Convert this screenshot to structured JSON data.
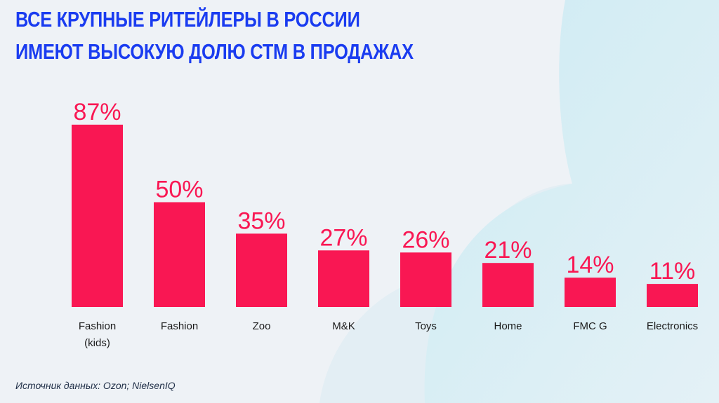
{
  "title_lines": [
    "ВСЕ КРУПНЫЕ РИТЕЙЛЕРЫ В РОССИИ",
    "ИМЕЮТ ВЫСОКУЮ ДОЛЮ СТМ В ПРОДАЖАХ"
  ],
  "source": "Источник данных: Ozon; NielsenIQ",
  "colors": {
    "bar": "#f91753",
    "title": "#1a3cf0",
    "value_label": "#f91753",
    "background": "#eef2f6",
    "cloud": "#cfeaf2"
  },
  "chart_data": {
    "type": "bar",
    "title": "ВСЕ КРУПНЫЕ РИТЕЙЛЕРЫ В РОССИИ ИМЕЮТ ВЫСОКУЮ ДОЛЮ СТМ В ПРОДАЖАХ",
    "categories": [
      [
        "Fashion",
        "(kids)"
      ],
      [
        "Fashion"
      ],
      [
        "Zoo"
      ],
      [
        "M&K"
      ],
      [
        "Toys"
      ],
      [
        "Home"
      ],
      [
        "FMC G"
      ],
      [
        "Electronics"
      ]
    ],
    "values": [
      87,
      50,
      35,
      27,
      26,
      21,
      14,
      11
    ],
    "value_labels": [
      "87%",
      "50%",
      "35%",
      "27%",
      "26%",
      "21%",
      "14%",
      "11%"
    ],
    "unit": "%",
    "xlabel": "",
    "ylabel": "",
    "ylim": [
      0,
      100
    ],
    "grid": false,
    "legend": "none"
  }
}
